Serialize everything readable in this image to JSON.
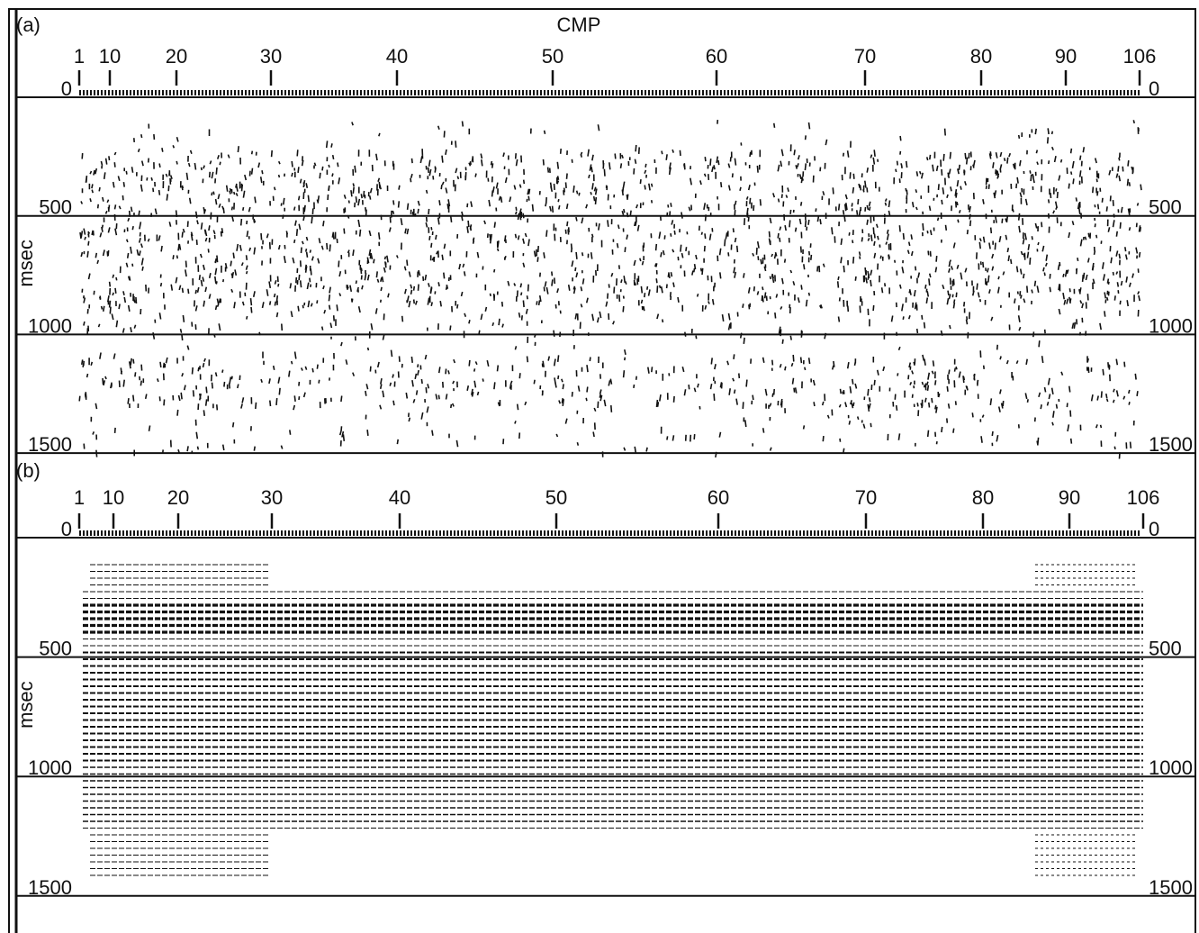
{
  "panels": [
    {
      "label": "(a)",
      "x_title": "CMP",
      "x_ticks": [
        1,
        10,
        20,
        30,
        40,
        50,
        60,
        70,
        80,
        90,
        106
      ],
      "y_title": "msec",
      "y_ticks_left": [
        0,
        500,
        1000,
        1500
      ],
      "y_ticks_right": [
        0,
        500,
        1000,
        1500
      ]
    },
    {
      "label": "(b)",
      "x_ticks": [
        1,
        10,
        20,
        30,
        40,
        50,
        60,
        70,
        80,
        90,
        106
      ],
      "y_title": "msec",
      "y_ticks_left": [
        0,
        500,
        1000,
        1500
      ],
      "y_ticks_right": [
        0,
        500,
        1000,
        1500
      ]
    }
  ]
}
